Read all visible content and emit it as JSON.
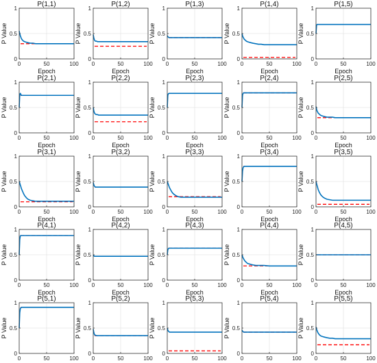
{
  "colors": {
    "estimate": "#0072bd",
    "true_value": "#ff0000",
    "grid": "#e6e6e6",
    "axes": "#333333"
  },
  "chart_data": {
    "type": "line",
    "layout": "5x5 grid of subplots",
    "xlabel": "Epoch",
    "ylabel": "P Value",
    "xlim": [
      0,
      100
    ],
    "ylim": [
      0,
      1
    ],
    "xticks": [
      "0",
      "50",
      "100"
    ],
    "yticks": [
      "0",
      "0.5",
      "1"
    ],
    "grid": true,
    "legend": "none",
    "series_styles": {
      "estimate": "solid blue line",
      "true_value": "dashed red line"
    },
    "epochs": [
      0,
      1,
      2,
      3,
      4,
      6,
      8,
      10,
      13,
      16,
      20,
      25,
      30,
      35,
      40,
      50,
      60,
      70,
      80,
      90,
      100
    ],
    "subplots": [
      {
        "title": "P(1,1)",
        "estimate": [
          0.55,
          0.5,
          0.46,
          0.43,
          0.4,
          0.37,
          0.35,
          0.34,
          0.33,
          0.32,
          0.31,
          0.31,
          0.3,
          0.3,
          0.3,
          0.3,
          0.3,
          0.3,
          0.3,
          0.3,
          0.3
        ],
        "true_value": 0.3
      },
      {
        "title": "P(1,2)",
        "estimate": [
          0.48,
          0.42,
          0.38,
          0.36,
          0.35,
          0.35,
          0.34,
          0.34,
          0.34,
          0.34,
          0.34,
          0.34,
          0.34,
          0.34,
          0.34,
          0.34,
          0.34,
          0.34,
          0.34,
          0.34,
          0.34
        ],
        "true_value": 0.25
      },
      {
        "title": "P(1,3)",
        "estimate": [
          0.46,
          0.44,
          0.43,
          0.42,
          0.42,
          0.42,
          0.42,
          0.42,
          0.42,
          0.42,
          0.42,
          0.42,
          0.42,
          0.42,
          0.42,
          0.42,
          0.42,
          0.42,
          0.42,
          0.42,
          0.42
        ],
        "true_value": 0.42
      },
      {
        "title": "P(1,4)",
        "estimate": [
          0.5,
          0.46,
          0.43,
          0.41,
          0.39,
          0.37,
          0.35,
          0.34,
          0.33,
          0.32,
          0.31,
          0.3,
          0.29,
          0.29,
          0.28,
          0.28,
          0.28,
          0.28,
          0.28,
          0.28,
          0.28
        ],
        "true_value": 0.03
      },
      {
        "title": "P(1,5)",
        "estimate": [
          0.5,
          0.66,
          0.68,
          0.68,
          0.68,
          0.68,
          0.68,
          0.68,
          0.68,
          0.68,
          0.68,
          0.68,
          0.68,
          0.68,
          0.68,
          0.68,
          0.68,
          0.68,
          0.68,
          0.68,
          0.68
        ],
        "true_value": 0.68
      },
      {
        "title": "P(2,1)",
        "estimate": [
          0.5,
          0.75,
          0.78,
          0.76,
          0.74,
          0.74,
          0.74,
          0.74,
          0.74,
          0.74,
          0.74,
          0.74,
          0.74,
          0.74,
          0.74,
          0.74,
          0.74,
          0.74,
          0.74,
          0.74,
          0.74
        ],
        "true_value": 0.74
      },
      {
        "title": "P(2,2)",
        "estimate": [
          0.5,
          0.44,
          0.4,
          0.38,
          0.37,
          0.36,
          0.36,
          0.35,
          0.35,
          0.35,
          0.35,
          0.35,
          0.35,
          0.35,
          0.35,
          0.35,
          0.35,
          0.35,
          0.35,
          0.35,
          0.35
        ],
        "true_value": 0.22
      },
      {
        "title": "P(2,3)",
        "estimate": [
          0.5,
          0.74,
          0.77,
          0.78,
          0.78,
          0.78,
          0.78,
          0.78,
          0.78,
          0.78,
          0.78,
          0.78,
          0.78,
          0.78,
          0.78,
          0.78,
          0.78,
          0.78,
          0.78,
          0.78,
          0.78
        ],
        "true_value": 0.78
      },
      {
        "title": "P(2,4)",
        "estimate": [
          0.5,
          0.74,
          0.78,
          0.79,
          0.79,
          0.79,
          0.79,
          0.79,
          0.79,
          0.79,
          0.79,
          0.79,
          0.79,
          0.79,
          0.79,
          0.79,
          0.79,
          0.79,
          0.79,
          0.79,
          0.79
        ],
        "true_value": 0.79
      },
      {
        "title": "P(2,5)",
        "estimate": [
          0.52,
          0.47,
          0.43,
          0.41,
          0.39,
          0.37,
          0.35,
          0.34,
          0.33,
          0.32,
          0.31,
          0.31,
          0.31,
          0.3,
          0.3,
          0.3,
          0.3,
          0.3,
          0.3,
          0.3,
          0.3
        ],
        "true_value": 0.3
      },
      {
        "title": "P(3,1)",
        "estimate": [
          0.5,
          0.47,
          0.43,
          0.4,
          0.36,
          0.31,
          0.26,
          0.22,
          0.18,
          0.15,
          0.13,
          0.12,
          0.11,
          0.11,
          0.11,
          0.11,
          0.11,
          0.11,
          0.11,
          0.11,
          0.11
        ],
        "true_value": 0.1
      },
      {
        "title": "P(3,2)",
        "estimate": [
          0.48,
          0.44,
          0.41,
          0.4,
          0.39,
          0.39,
          0.39,
          0.39,
          0.39,
          0.39,
          0.39,
          0.39,
          0.39,
          0.39,
          0.39,
          0.39,
          0.39,
          0.39,
          0.39,
          0.39,
          0.39
        ],
        "true_value": 0.39
      },
      {
        "title": "P(3,3)",
        "estimate": [
          0.5,
          0.47,
          0.44,
          0.41,
          0.38,
          0.34,
          0.3,
          0.27,
          0.24,
          0.22,
          0.2,
          0.19,
          0.19,
          0.19,
          0.19,
          0.19,
          0.19,
          0.19,
          0.19,
          0.19,
          0.19
        ],
        "true_value": 0.2
      },
      {
        "title": "P(3,4)",
        "estimate": [
          0.5,
          0.7,
          0.77,
          0.79,
          0.8,
          0.8,
          0.8,
          0.8,
          0.8,
          0.8,
          0.8,
          0.8,
          0.8,
          0.8,
          0.8,
          0.8,
          0.8,
          0.8,
          0.8,
          0.8,
          0.8
        ],
        "true_value": 0.8
      },
      {
        "title": "P(3,5)",
        "estimate": [
          0.5,
          0.46,
          0.42,
          0.38,
          0.34,
          0.29,
          0.25,
          0.22,
          0.19,
          0.17,
          0.15,
          0.14,
          0.13,
          0.13,
          0.13,
          0.13,
          0.13,
          0.13,
          0.13,
          0.13,
          0.13
        ],
        "true_value": 0.05
      },
      {
        "title": "P(4,1)",
        "estimate": [
          0.5,
          0.8,
          0.87,
          0.88,
          0.88,
          0.88,
          0.88,
          0.88,
          0.88,
          0.88,
          0.88,
          0.88,
          0.88,
          0.88,
          0.88,
          0.88,
          0.88,
          0.88,
          0.88,
          0.88,
          0.88
        ],
        "true_value": 0.88
      },
      {
        "title": "P(4,2)",
        "estimate": [
          0.5,
          0.48,
          0.47,
          0.47,
          0.47,
          0.47,
          0.47,
          0.47,
          0.47,
          0.47,
          0.47,
          0.47,
          0.47,
          0.47,
          0.47,
          0.47,
          0.47,
          0.47,
          0.47,
          0.47,
          0.47
        ],
        "true_value": 0.47
      },
      {
        "title": "P(4,3)",
        "estimate": [
          0.5,
          0.6,
          0.62,
          0.63,
          0.63,
          0.63,
          0.63,
          0.63,
          0.63,
          0.63,
          0.63,
          0.63,
          0.63,
          0.63,
          0.63,
          0.63,
          0.63,
          0.63,
          0.63,
          0.63,
          0.63
        ],
        "true_value": 0.63
      },
      {
        "title": "P(4,4)",
        "estimate": [
          0.5,
          0.47,
          0.44,
          0.42,
          0.4,
          0.37,
          0.35,
          0.33,
          0.32,
          0.31,
          0.3,
          0.29,
          0.29,
          0.29,
          0.29,
          0.28,
          0.28,
          0.28,
          0.28,
          0.28,
          0.28
        ],
        "true_value": 0.28
      },
      {
        "title": "P(4,5)",
        "estimate": [
          0.5,
          0.5,
          0.5,
          0.5,
          0.5,
          0.5,
          0.5,
          0.5,
          0.5,
          0.5,
          0.5,
          0.5,
          0.5,
          0.5,
          0.5,
          0.5,
          0.5,
          0.5,
          0.5,
          0.5,
          0.5
        ],
        "true_value": 0.5
      },
      {
        "title": "P(5,1)",
        "estimate": [
          0.5,
          0.8,
          0.88,
          0.9,
          0.91,
          0.91,
          0.91,
          0.91,
          0.91,
          0.91,
          0.91,
          0.91,
          0.91,
          0.91,
          0.91,
          0.91,
          0.91,
          0.91,
          0.91,
          0.91,
          0.91
        ],
        "true_value": 0.91
      },
      {
        "title": "P(5,2)",
        "estimate": [
          0.48,
          0.42,
          0.38,
          0.36,
          0.36,
          0.35,
          0.35,
          0.35,
          0.35,
          0.35,
          0.35,
          0.35,
          0.35,
          0.35,
          0.35,
          0.35,
          0.35,
          0.35,
          0.35,
          0.35,
          0.35
        ],
        "true_value": 0.35
      },
      {
        "title": "P(5,3)",
        "estimate": [
          0.5,
          0.46,
          0.44,
          0.43,
          0.42,
          0.42,
          0.42,
          0.42,
          0.42,
          0.42,
          0.42,
          0.42,
          0.42,
          0.42,
          0.42,
          0.42,
          0.42,
          0.42,
          0.42,
          0.42,
          0.42
        ],
        "true_value": 0.05
      },
      {
        "title": "P(5,4)",
        "estimate": [
          0.46,
          0.44,
          0.43,
          0.42,
          0.42,
          0.42,
          0.42,
          0.42,
          0.42,
          0.42,
          0.42,
          0.42,
          0.42,
          0.42,
          0.42,
          0.42,
          0.42,
          0.42,
          0.42,
          0.42,
          0.42
        ],
        "true_value": 0.42
      },
      {
        "title": "P(5,5)",
        "estimate": [
          0.52,
          0.48,
          0.45,
          0.42,
          0.4,
          0.37,
          0.35,
          0.34,
          0.33,
          0.32,
          0.31,
          0.3,
          0.3,
          0.29,
          0.29,
          0.29,
          0.29,
          0.29,
          0.29,
          0.29,
          0.29
        ],
        "true_value": 0.17
      }
    ]
  }
}
